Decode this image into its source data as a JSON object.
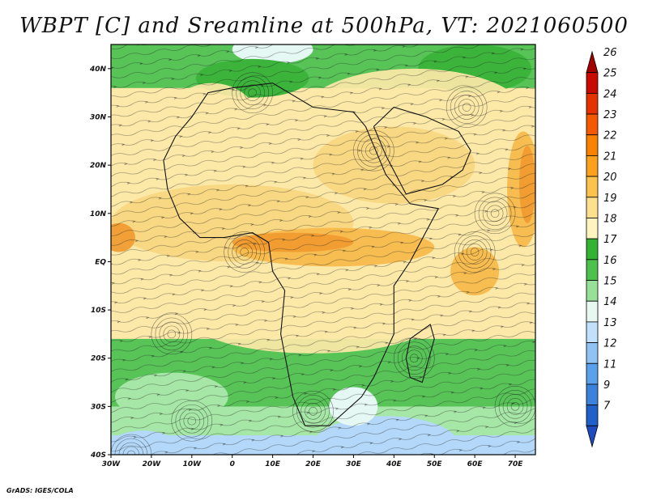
{
  "title": "WBPT [C] and Sreamline at 500hPa, VT: 2021060500",
  "credit": "GrADS: IGES/COLA",
  "map": {
    "lon_range": [
      -30,
      75
    ],
    "lat_range": [
      -40,
      45
    ],
    "lon_ticks": [
      {
        "value": -30,
        "label": "30W"
      },
      {
        "value": -20,
        "label": "20W"
      },
      {
        "value": -10,
        "label": "10W"
      },
      {
        "value": 0,
        "label": "0"
      },
      {
        "value": 10,
        "label": "10E"
      },
      {
        "value": 20,
        "label": "20E"
      },
      {
        "value": 30,
        "label": "30E"
      },
      {
        "value": 40,
        "label": "40E"
      },
      {
        "value": 50,
        "label": "50E"
      },
      {
        "value": 60,
        "label": "60E"
      },
      {
        "value": 70,
        "label": "70E"
      }
    ],
    "lat_ticks": [
      {
        "value": 40,
        "label": "40N"
      },
      {
        "value": 30,
        "label": "30N"
      },
      {
        "value": 20,
        "label": "20N"
      },
      {
        "value": 10,
        "label": "10N"
      },
      {
        "value": 0,
        "label": "EQ"
      },
      {
        "value": -10,
        "label": "10S"
      },
      {
        "value": -20,
        "label": "20S"
      },
      {
        "value": -30,
        "label": "30S"
      },
      {
        "value": -40,
        "label": "40S"
      }
    ]
  },
  "colorbar": {
    "labels": [
      "26",
      "25",
      "24",
      "23",
      "22",
      "21",
      "20",
      "19",
      "18",
      "17",
      "16",
      "15",
      "14",
      "13",
      "12",
      "11",
      "9",
      "7"
    ],
    "colors": [
      "#a50000",
      "#c80a00",
      "#e63200",
      "#f55a00",
      "#fa8200",
      "#fca01e",
      "#fcc24e",
      "#fce08e",
      "#fef4c0",
      "#33b233",
      "#4cc24c",
      "#98e098",
      "#e8f8f0",
      "#c0e0fc",
      "#90c2f4",
      "#5aa0ea",
      "#3c82dc",
      "#2060c8",
      "#1e4cc0"
    ]
  },
  "field": {
    "legend_colors": {
      "c14": "#b4d8fa",
      "c15": "#e6f8f4",
      "c16": "#a6e6a6",
      "c17": "#58c458",
      "c18": "#3cb43c",
      "c19": "#fce8a8",
      "c20": "#f8d680",
      "c21": "#f6b84a",
      "c22": "#f09a30",
      "c23": "#e87826",
      "c24": "#d85a1a"
    },
    "blobs": [
      {
        "lon": 15,
        "lat": 5,
        "rx": 70,
        "ry": 18,
        "c": "c19"
      },
      {
        "lon": 45,
        "lat": 30,
        "rx": 28,
        "ry": 10,
        "c": "c19"
      },
      {
        "lon": -5,
        "lat": 28,
        "rx": 12,
        "ry": 9,
        "c": "c19"
      },
      {
        "lon": 20,
        "lat": -12,
        "rx": 30,
        "ry": 7,
        "c": "c19"
      },
      {
        "lon": 0,
        "lat": 8,
        "rx": 30,
        "ry": 8,
        "c": "c20"
      },
      {
        "lon": 40,
        "lat": 20,
        "rx": 20,
        "ry": 8,
        "c": "c20"
      },
      {
        "lon": 25,
        "lat": 3,
        "rx": 25,
        "ry": 4,
        "c": "c21"
      },
      {
        "lon": 60,
        "lat": -2,
        "rx": 6,
        "ry": 5,
        "c": "c21"
      },
      {
        "lon": 72,
        "lat": 15,
        "rx": 4,
        "ry": 12,
        "c": "c21"
      },
      {
        "lon": -28,
        "lat": 5,
        "rx": 4,
        "ry": 3,
        "c": "c22"
      },
      {
        "lon": 15,
        "lat": 4,
        "rx": 15,
        "ry": 2,
        "c": "c22"
      },
      {
        "lon": 73,
        "lat": 16,
        "rx": 2,
        "ry": 8,
        "c": "c22"
      }
    ]
  }
}
